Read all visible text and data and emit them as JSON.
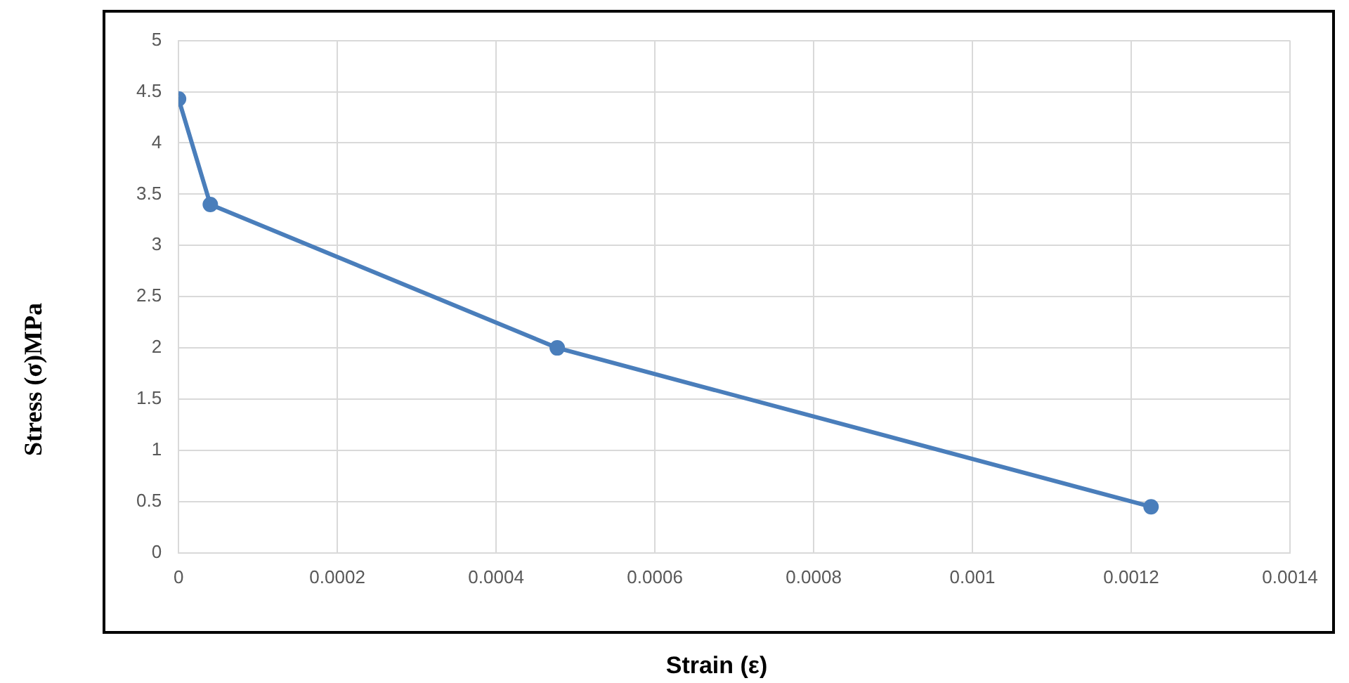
{
  "chart_data": {
    "type": "line",
    "xlabel": "Strain (ε)",
    "ylabel": "Stress (σ)MPa",
    "x": [
      0,
      4e-05,
      0.000477,
      0.001225
    ],
    "series": [
      {
        "color": "#4a7ebb",
        "values": [
          4.43,
          3.4,
          2.0,
          0.45
        ]
      }
    ],
    "xlim": [
      0,
      0.0014
    ],
    "xticks": [
      0,
      0.0002,
      0.0004,
      0.0006,
      0.0008,
      0.001,
      0.0012,
      0.0014
    ],
    "ylim": [
      0,
      5
    ],
    "yticks": [
      0,
      0.5,
      1,
      1.5,
      2,
      2.5,
      3,
      3.5,
      4,
      4.5,
      5
    ],
    "grid": true,
    "legend": false,
    "marker": "circle",
    "line_style": "solid"
  }
}
